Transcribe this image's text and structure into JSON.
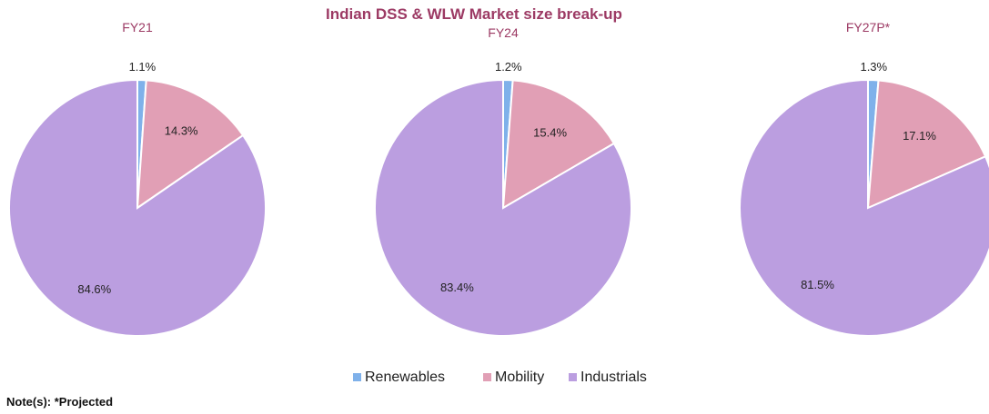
{
  "chart_data": {
    "type": "pie",
    "title": "Indian DSS & WLW Market size break-up",
    "unit": "%",
    "categories": [
      "Renewables",
      "Mobility",
      "Industrials"
    ],
    "pies": [
      {
        "title": "FY21",
        "values": [
          1.1,
          14.3,
          84.6
        ],
        "labels": [
          "1.1%",
          "14.3%",
          "84.6%"
        ]
      },
      {
        "title": "FY24",
        "values": [
          1.2,
          15.4,
          83.4
        ],
        "labels": [
          "1.2%",
          "15.4%",
          "83.4%"
        ]
      },
      {
        "title": "FY27P*",
        "values": [
          1.3,
          17.1,
          81.5
        ],
        "labels": [
          "1.3%",
          "17.1%",
          "81.5%"
        ]
      }
    ],
    "legend": {
      "position": "bottom-center",
      "items": [
        "Renewables",
        "Mobility",
        "Industrials"
      ]
    },
    "colors": {
      "Renewables": "#7fb1ea",
      "Mobility": "#e19fb5",
      "Industrials": "#bb9ee0",
      "title": "#9c3a64"
    },
    "note": "Note(s): *Projected"
  }
}
